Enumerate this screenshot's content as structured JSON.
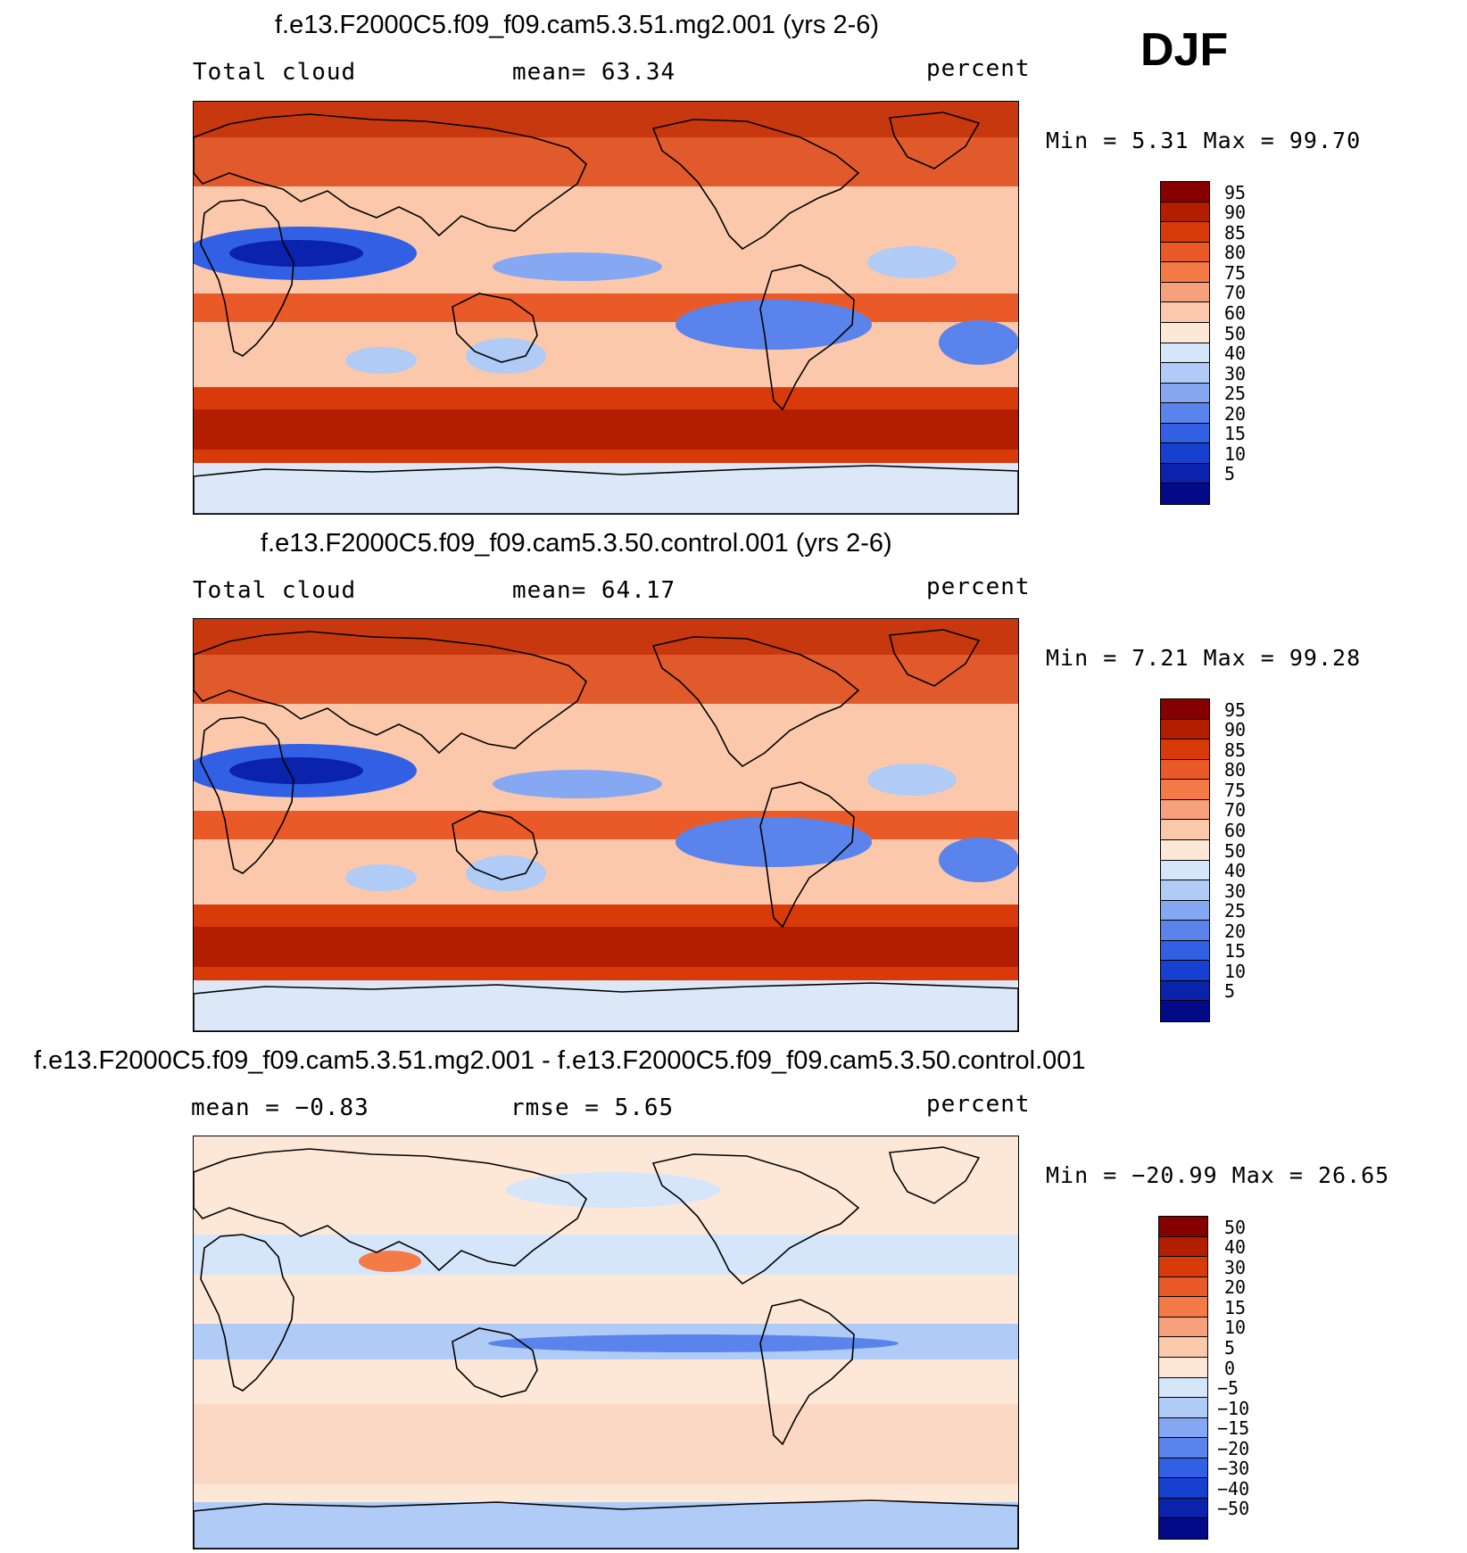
{
  "season": "DJF",
  "panels": [
    {
      "title": "f.e13.F2000C5.f09_f09.cam5.3.51.mg2.001 (yrs 2-6)",
      "left_label": "Total cloud",
      "center_label": "mean=  63.34",
      "right_label": "percent",
      "minmax": "Min =   5.31 Max =  99.70"
    },
    {
      "title": "f.e13.F2000C5.f09_f09.cam5.3.50.control.001 (yrs 2-6)",
      "left_label": "Total cloud",
      "center_label": "mean=  64.17",
      "right_label": "percent",
      "minmax": "Min =   7.21 Max =  99.28"
    },
    {
      "title": "f.e13.F2000C5.f09_f09.cam5.3.51.mg2.001 - f.e13.F2000C5.f09_f09.cam5.3.50.control.001",
      "left_label": "mean =  −0.83",
      "center_label": "rmse =   5.65",
      "right_label": "percent",
      "minmax": "Min = −20.99 Max =  26.65"
    }
  ],
  "colorbars": {
    "cloud": {
      "labels": [
        "95",
        "90",
        "85",
        "80",
        "75",
        "70",
        "60",
        "50",
        "40",
        "30",
        "25",
        "20",
        "15",
        "10",
        "5"
      ],
      "colors": [
        "#870000",
        "#b41e00",
        "#d83a0a",
        "#ea5a28",
        "#f47a48",
        "#f7a07c",
        "#fbc8ac",
        "#fde8d8",
        "#d6e6fa",
        "#b0cbf6",
        "#86a8f2",
        "#5a84ec",
        "#3260e4",
        "#1640d0",
        "#0a22ac",
        "#020a88"
      ]
    },
    "diff": {
      "labels": [
        "50",
        "40",
        "30",
        "20",
        "15",
        "10",
        "5",
        "0",
        "−5",
        "−10",
        "−15",
        "−20",
        "−30",
        "−40",
        "−50"
      ],
      "colors": [
        "#870000",
        "#b41e00",
        "#d83a0a",
        "#ea5a28",
        "#f47a48",
        "#f7a07c",
        "#fbc8ac",
        "#fde8d8",
        "#d6e6fa",
        "#b0cbf6",
        "#86a8f2",
        "#5a84ec",
        "#3260e4",
        "#1640d0",
        "#0a22ac",
        "#020a88"
      ]
    }
  }
}
